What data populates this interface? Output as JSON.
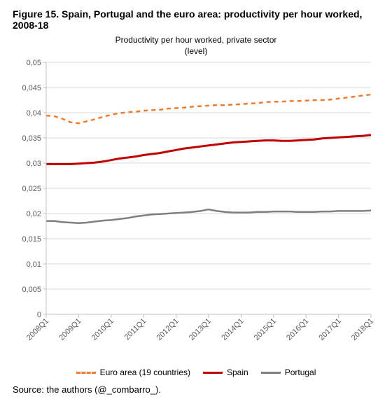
{
  "figure": {
    "title": "Figure 15. Spain, Portugal and the euro area: productivity per hour worked, 2008-18",
    "chart_title_line1": "Productivity per hour worked, private sector",
    "chart_title_line2": "(level)",
    "source": "Source: the authors (@_combarro_)."
  },
  "chart": {
    "type": "line",
    "background_color": "#ffffff",
    "plot_border_color": "#bfbfbf",
    "grid_color": "#d9d9d9",
    "tick_font_size": 11,
    "title_font_size": 12,
    "yaxis": {
      "min": 0,
      "max": 0.05,
      "step": 0.005,
      "labels": [
        "0",
        "0,005",
        "0,01",
        "0,015",
        "0,02",
        "0,025",
        "0,03",
        "0,035",
        "0,04",
        "0,045",
        "0,05"
      ]
    },
    "xaxis": {
      "n_points": 41,
      "tick_indices": [
        0,
        4,
        8,
        12,
        16,
        20,
        24,
        28,
        32,
        36,
        40
      ],
      "tick_labels": [
        "2008Q1",
        "2009Q1",
        "2010Q1",
        "2011Q1",
        "2012Q1",
        "2013Q1",
        "2014Q1",
        "2015Q1",
        "2016Q1",
        "2017Q1",
        "2018Q1"
      ],
      "rotate_deg": -45
    },
    "series": [
      {
        "name": "Euro area (19 countries)",
        "color": "#ed7d31",
        "width": 2.5,
        "dash": "6,5",
        "values": [
          0.0394,
          0.0393,
          0.0388,
          0.0381,
          0.0379,
          0.0383,
          0.0387,
          0.0392,
          0.0396,
          0.0399,
          0.0401,
          0.0402,
          0.0404,
          0.0405,
          0.0406,
          0.0408,
          0.0409,
          0.041,
          0.0412,
          0.0413,
          0.0414,
          0.0415,
          0.0415,
          0.0416,
          0.0417,
          0.0418,
          0.0419,
          0.0421,
          0.0422,
          0.0422,
          0.0423,
          0.0423,
          0.0424,
          0.0425,
          0.0425,
          0.0426,
          0.0428,
          0.043,
          0.0432,
          0.0434,
          0.0436
        ]
      },
      {
        "name": "Spain",
        "color": "#c00000",
        "width": 3,
        "dash": "",
        "values": [
          0.0298,
          0.0298,
          0.0298,
          0.0298,
          0.0299,
          0.03,
          0.0301,
          0.0303,
          0.0306,
          0.0309,
          0.0311,
          0.0313,
          0.0316,
          0.0318,
          0.032,
          0.0323,
          0.0326,
          0.0329,
          0.0331,
          0.0333,
          0.0335,
          0.0337,
          0.0339,
          0.0341,
          0.0342,
          0.0343,
          0.0344,
          0.0345,
          0.0345,
          0.0344,
          0.0344,
          0.0345,
          0.0346,
          0.0347,
          0.0349,
          0.035,
          0.0351,
          0.0352,
          0.0353,
          0.0354,
          0.0356
        ]
      },
      {
        "name": "Portugal",
        "color": "#7f7f7f",
        "width": 2.5,
        "dash": "",
        "values": [
          0.0185,
          0.0185,
          0.0183,
          0.0182,
          0.0181,
          0.0182,
          0.0184,
          0.0186,
          0.0187,
          0.0189,
          0.0191,
          0.0194,
          0.0196,
          0.0198,
          0.0199,
          0.02,
          0.0201,
          0.0202,
          0.0203,
          0.0205,
          0.0208,
          0.0205,
          0.0203,
          0.0202,
          0.0202,
          0.0202,
          0.0203,
          0.0203,
          0.0204,
          0.0204,
          0.0204,
          0.0203,
          0.0203,
          0.0203,
          0.0204,
          0.0204,
          0.0205,
          0.0205,
          0.0205,
          0.0205,
          0.0206
        ]
      }
    ],
    "legend": {
      "items": [
        {
          "label": "Euro area (19 countries)",
          "color": "#ed7d31",
          "dash": true
        },
        {
          "label": "Spain",
          "color": "#c00000",
          "dash": false
        },
        {
          "label": "Portugal",
          "color": "#7f7f7f",
          "dash": false
        }
      ]
    }
  }
}
